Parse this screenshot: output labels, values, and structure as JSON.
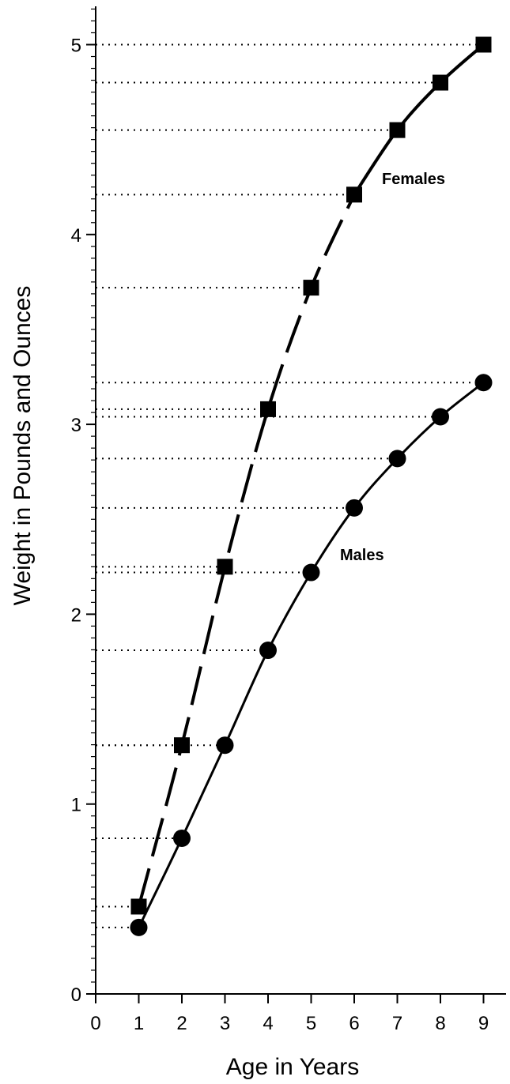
{
  "chart_data": {
    "type": "line",
    "title": "",
    "xlabel": "Age in Years",
    "ylabel": "Weight in Pounds and Ounces",
    "xlim": [
      0,
      9.5
    ],
    "ylim": [
      0,
      5.2
    ],
    "x_ticks": [
      "0",
      "1",
      "2",
      "3",
      "4",
      "5",
      "6",
      "7",
      "8",
      "9"
    ],
    "y_ticks": [
      "0",
      "1",
      "2",
      "3",
      "4",
      "5"
    ],
    "grid": "dotted horizontal guide lines from the y-axis to each data point",
    "x": [
      1,
      2,
      3,
      4,
      5,
      6,
      7,
      8,
      9
    ],
    "series": [
      {
        "name": "Females",
        "marker": "square",
        "line_style": "dashed to age 6, solid after",
        "values": [
          0.46,
          1.31,
          2.25,
          3.08,
          3.72,
          4.21,
          4.55,
          4.8,
          5.0
        ]
      },
      {
        "name": "Males",
        "marker": "circle",
        "line_style": "solid",
        "values": [
          0.35,
          0.82,
          1.31,
          1.81,
          2.22,
          2.56,
          2.82,
          3.04,
          3.22
        ]
      }
    ]
  }
}
